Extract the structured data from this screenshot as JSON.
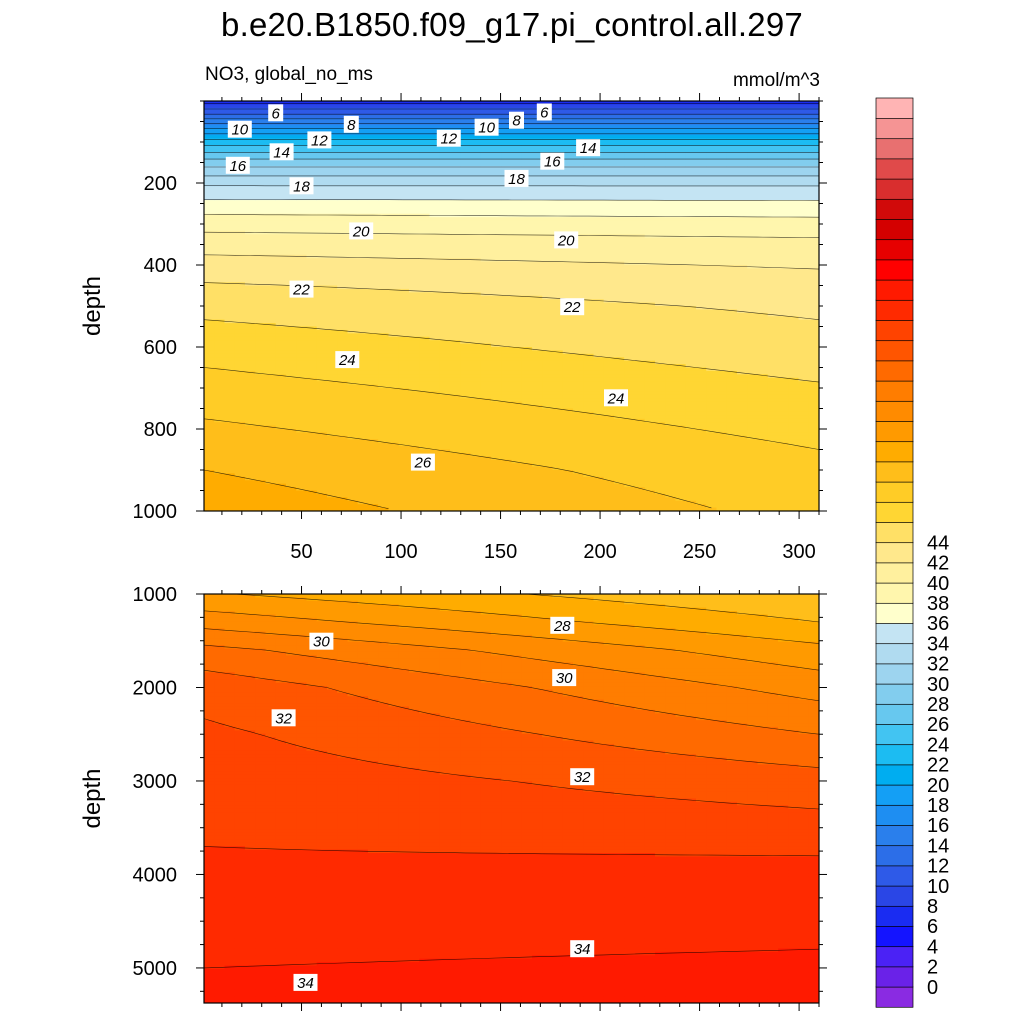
{
  "header": {
    "title": "b.e20.B1850.f09_g17.pi_control.all.297",
    "variable": "NO3, global_no_ms",
    "units": "mmol/m^3"
  },
  "chart_data": [
    {
      "type": "heatmap",
      "panel": "upper",
      "ylabel": "depth",
      "xlim": [
        1,
        310
      ],
      "ylim": [
        0,
        1000
      ],
      "y_inverted": true,
      "x_ticks": [
        50,
        100,
        150,
        200,
        250,
        300
      ],
      "x_tick_labels": [
        "50",
        "100",
        "150",
        "200",
        "250",
        "300"
      ],
      "y_ticks": [
        200,
        400,
        600,
        800,
        1000
      ],
      "y_tick_labels": [
        "200",
        "400",
        "600",
        "800",
        "1000"
      ],
      "depth_samples": [
        0,
        30,
        60,
        100,
        150,
        200,
        250,
        300,
        350,
        400,
        450,
        500,
        600,
        700,
        800,
        900,
        1000
      ],
      "time_samples": [
        1,
        310
      ],
      "values_at_time_1": [
        3.5,
        5.8,
        8.5,
        11.5,
        14.5,
        16.8,
        18.3,
        19.6,
        20.6,
        21.4,
        22.1,
        22.7,
        23.6,
        24.4,
        25.2,
        26.0,
        26.6
      ],
      "values_at_time_310": [
        3.5,
        5.8,
        8.5,
        11.5,
        14.5,
        16.8,
        18.2,
        19.4,
        20.3,
        20.9,
        21.4,
        21.8,
        22.4,
        23.1,
        23.7,
        24.3,
        24.7
      ],
      "contour_labels": [
        {
          "text": "6",
          "x": 37,
          "y": 30
        },
        {
          "text": "8",
          "x": 75,
          "y": 58
        },
        {
          "text": "10",
          "x": 19,
          "y": 70
        },
        {
          "text": "12",
          "x": 59,
          "y": 96
        },
        {
          "text": "14",
          "x": 40,
          "y": 125
        },
        {
          "text": "16",
          "x": 18,
          "y": 158
        },
        {
          "text": "18",
          "x": 50,
          "y": 208
        },
        {
          "text": "20",
          "x": 80,
          "y": 318
        },
        {
          "text": "22",
          "x": 50,
          "y": 460
        },
        {
          "text": "24",
          "x": 73,
          "y": 632
        },
        {
          "text": "26",
          "x": 111,
          "y": 882
        },
        {
          "text": "6",
          "x": 172,
          "y": 28
        },
        {
          "text": "8",
          "x": 158,
          "y": 48
        },
        {
          "text": "10",
          "x": 143,
          "y": 65
        },
        {
          "text": "12",
          "x": 124,
          "y": 92
        },
        {
          "text": "14",
          "x": 194,
          "y": 115
        },
        {
          "text": "16",
          "x": 176,
          "y": 148
        },
        {
          "text": "18",
          "x": 158,
          "y": 190
        },
        {
          "text": "20",
          "x": 183,
          "y": 340
        },
        {
          "text": "22",
          "x": 186,
          "y": 503
        },
        {
          "text": "24",
          "x": 208,
          "y": 725
        }
      ]
    },
    {
      "type": "heatmap",
      "panel": "lower",
      "ylabel": "depth",
      "xlim": [
        1,
        310
      ],
      "ylim": [
        1000,
        5375
      ],
      "y_inverted": true,
      "x_ticks": [
        50,
        100,
        150,
        200,
        250,
        300
      ],
      "y_ticks": [
        1000,
        2000,
        3000,
        4000,
        5000
      ],
      "y_tick_labels": [
        "1000",
        "2000",
        "3000",
        "4000",
        "5000"
      ],
      "depth_samples": [
        1000,
        1300,
        1600,
        2000,
        2500,
        3000,
        3500,
        3700,
        4000,
        4500,
        5000,
        5375
      ],
      "time_samples": [
        1,
        310
      ],
      "values_at_time_1": [
        27.1,
        28.6,
        30.3,
        31.6,
        32.2,
        32.6,
        32.9,
        33.0,
        33.1,
        33.6,
        34.0,
        34.2
      ],
      "values_at_time_310": [
        25.0,
        26.0,
        27.3,
        28.6,
        30.0,
        31.4,
        32.4,
        32.9,
        33.2,
        33.7,
        34.2,
        34.5
      ],
      "contour_labels": [
        {
          "text": "30",
          "x": 60,
          "y": 1510
        },
        {
          "text": "32",
          "x": 41,
          "y": 2330
        },
        {
          "text": "28",
          "x": 181,
          "y": 1340
        },
        {
          "text": "30",
          "x": 182,
          "y": 1900
        },
        {
          "text": "32",
          "x": 191,
          "y": 2960
        },
        {
          "text": "34",
          "x": 191,
          "y": 4800
        },
        {
          "text": "34",
          "x": 52,
          "y": 5160
        }
      ]
    }
  ],
  "colorbar": {
    "tick_labels": [
      "0",
      "2",
      "4",
      "6",
      "8",
      "10",
      "12",
      "14",
      "16",
      "18",
      "20",
      "22",
      "24",
      "26",
      "28",
      "30",
      "32",
      "34",
      "36",
      "38",
      "40",
      "42",
      "44"
    ],
    "colors": [
      "#8a2be2",
      "#6a22e8",
      "#4b22f5",
      "#1414ff",
      "#1a2cf2",
      "#2a46e6",
      "#2e5ae8",
      "#2c6ee8",
      "#2a7fec",
      "#1e8ef2",
      "#149ff5",
      "#00adf0",
      "#1cbcf2",
      "#42c4f2",
      "#67c8ef",
      "#82cdee",
      "#9dd4ef",
      "#b0dbf0",
      "#c4e4f3",
      "#ffffcc",
      "#fff6ad",
      "#fff09e",
      "#ffe88c",
      "#ffe066",
      "#ffd633",
      "#ffcc26",
      "#ffbe1a",
      "#ffac00",
      "#ff9a00",
      "#ff8b00",
      "#ff7d00",
      "#ff6a00",
      "#ff5500",
      "#ff4300",
      "#ff2a00",
      "#ff1a00",
      "#ff0000",
      "#e60000",
      "#d40000",
      "#d10a0a",
      "#d92e2e",
      "#e04a4a",
      "#e87070",
      "#f59494",
      "#ffb4b4"
    ]
  }
}
